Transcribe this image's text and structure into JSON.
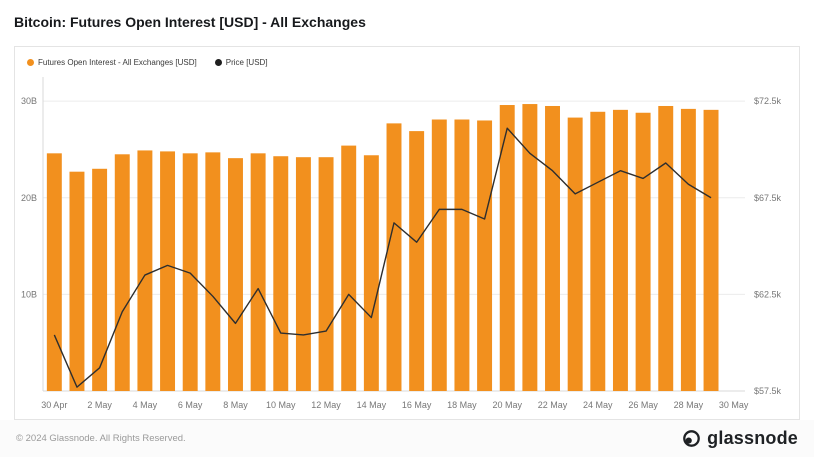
{
  "title": "Bitcoin: Futures Open Interest [USD] - All Exchanges",
  "legend": {
    "open_interest": "Futures Open Interest - All Exchanges [USD]",
    "price": "Price [USD]"
  },
  "colors": {
    "bars": "#f2901e",
    "line": "#2e2e2e",
    "grid": "#ececec",
    "axis_line": "#d9d9d9",
    "axis_text": "#777777"
  },
  "footer": {
    "copyright": "© 2024 Glassnode. All Rights Reserved.",
    "brand": "glassnode"
  },
  "chart_data": {
    "type": "bar+line",
    "title": "Bitcoin: Futures Open Interest [USD] - All Exchanges",
    "grid": true,
    "legend_position": "top-left",
    "x": [
      "30 Apr",
      "1 May",
      "2 May",
      "3 May",
      "4 May",
      "5 May",
      "6 May",
      "7 May",
      "8 May",
      "9 May",
      "10 May",
      "11 May",
      "12 May",
      "13 May",
      "14 May",
      "15 May",
      "16 May",
      "17 May",
      "18 May",
      "19 May",
      "20 May",
      "21 May",
      "22 May",
      "23 May",
      "24 May",
      "25 May",
      "26 May",
      "27 May",
      "28 May",
      "29 May"
    ],
    "x_ticks": [
      {
        "index": 0,
        "label": "30 Apr"
      },
      {
        "index": 2,
        "label": "2 May"
      },
      {
        "index": 4,
        "label": "4 May"
      },
      {
        "index": 6,
        "label": "6 May"
      },
      {
        "index": 8,
        "label": "8 May"
      },
      {
        "index": 10,
        "label": "10 May"
      },
      {
        "index": 12,
        "label": "12 May"
      },
      {
        "index": 14,
        "label": "14 May"
      },
      {
        "index": 16,
        "label": "16 May"
      },
      {
        "index": 18,
        "label": "18 May"
      },
      {
        "index": 20,
        "label": "20 May"
      },
      {
        "index": 22,
        "label": "22 May"
      },
      {
        "index": 24,
        "label": "24 May"
      },
      {
        "index": 26,
        "label": "26 May"
      },
      {
        "index": 28,
        "label": "28 May"
      },
      {
        "index": 30,
        "label": "30 May"
      }
    ],
    "series": [
      {
        "name": "Futures Open Interest - All Exchanges [USD]",
        "type": "bar",
        "axis": "left",
        "unit": "billions USD",
        "values": [
          24.6,
          22.7,
          23.0,
          24.5,
          24.9,
          24.8,
          24.6,
          24.7,
          24.1,
          24.6,
          24.3,
          24.2,
          24.2,
          25.4,
          24.4,
          27.7,
          26.9,
          28.1,
          28.1,
          28.0,
          29.6,
          29.7,
          29.5,
          28.3,
          28.9,
          29.1,
          28.8,
          29.5,
          29.2,
          29.1
        ]
      },
      {
        "name": "Price [USD]",
        "type": "line",
        "axis": "right",
        "unit": "thousands USD",
        "values": [
          60.4,
          57.7,
          58.7,
          61.6,
          63.5,
          64.0,
          63.6,
          62.4,
          61.0,
          62.8,
          60.5,
          60.4,
          60.6,
          62.5,
          61.3,
          66.2,
          65.2,
          66.9,
          66.9,
          66.4,
          71.1,
          69.8,
          68.9,
          67.7,
          68.3,
          68.9,
          68.5,
          69.3,
          68.2,
          67.5
        ]
      }
    ],
    "left_axis": {
      "min": 0,
      "max": 32.5,
      "ticks": [
        {
          "value": 10,
          "label": "10B"
        },
        {
          "value": 20,
          "label": "20B"
        },
        {
          "value": 30,
          "label": "30B"
        }
      ]
    },
    "right_axis": {
      "min": 57.5,
      "max": 73.75,
      "ticks": [
        {
          "value": 57.5,
          "label": "$57.5k"
        },
        {
          "value": 62.5,
          "label": "$62.5k"
        },
        {
          "value": 67.5,
          "label": "$67.5k"
        },
        {
          "value": 72.5,
          "label": "$72.5k"
        }
      ]
    }
  }
}
